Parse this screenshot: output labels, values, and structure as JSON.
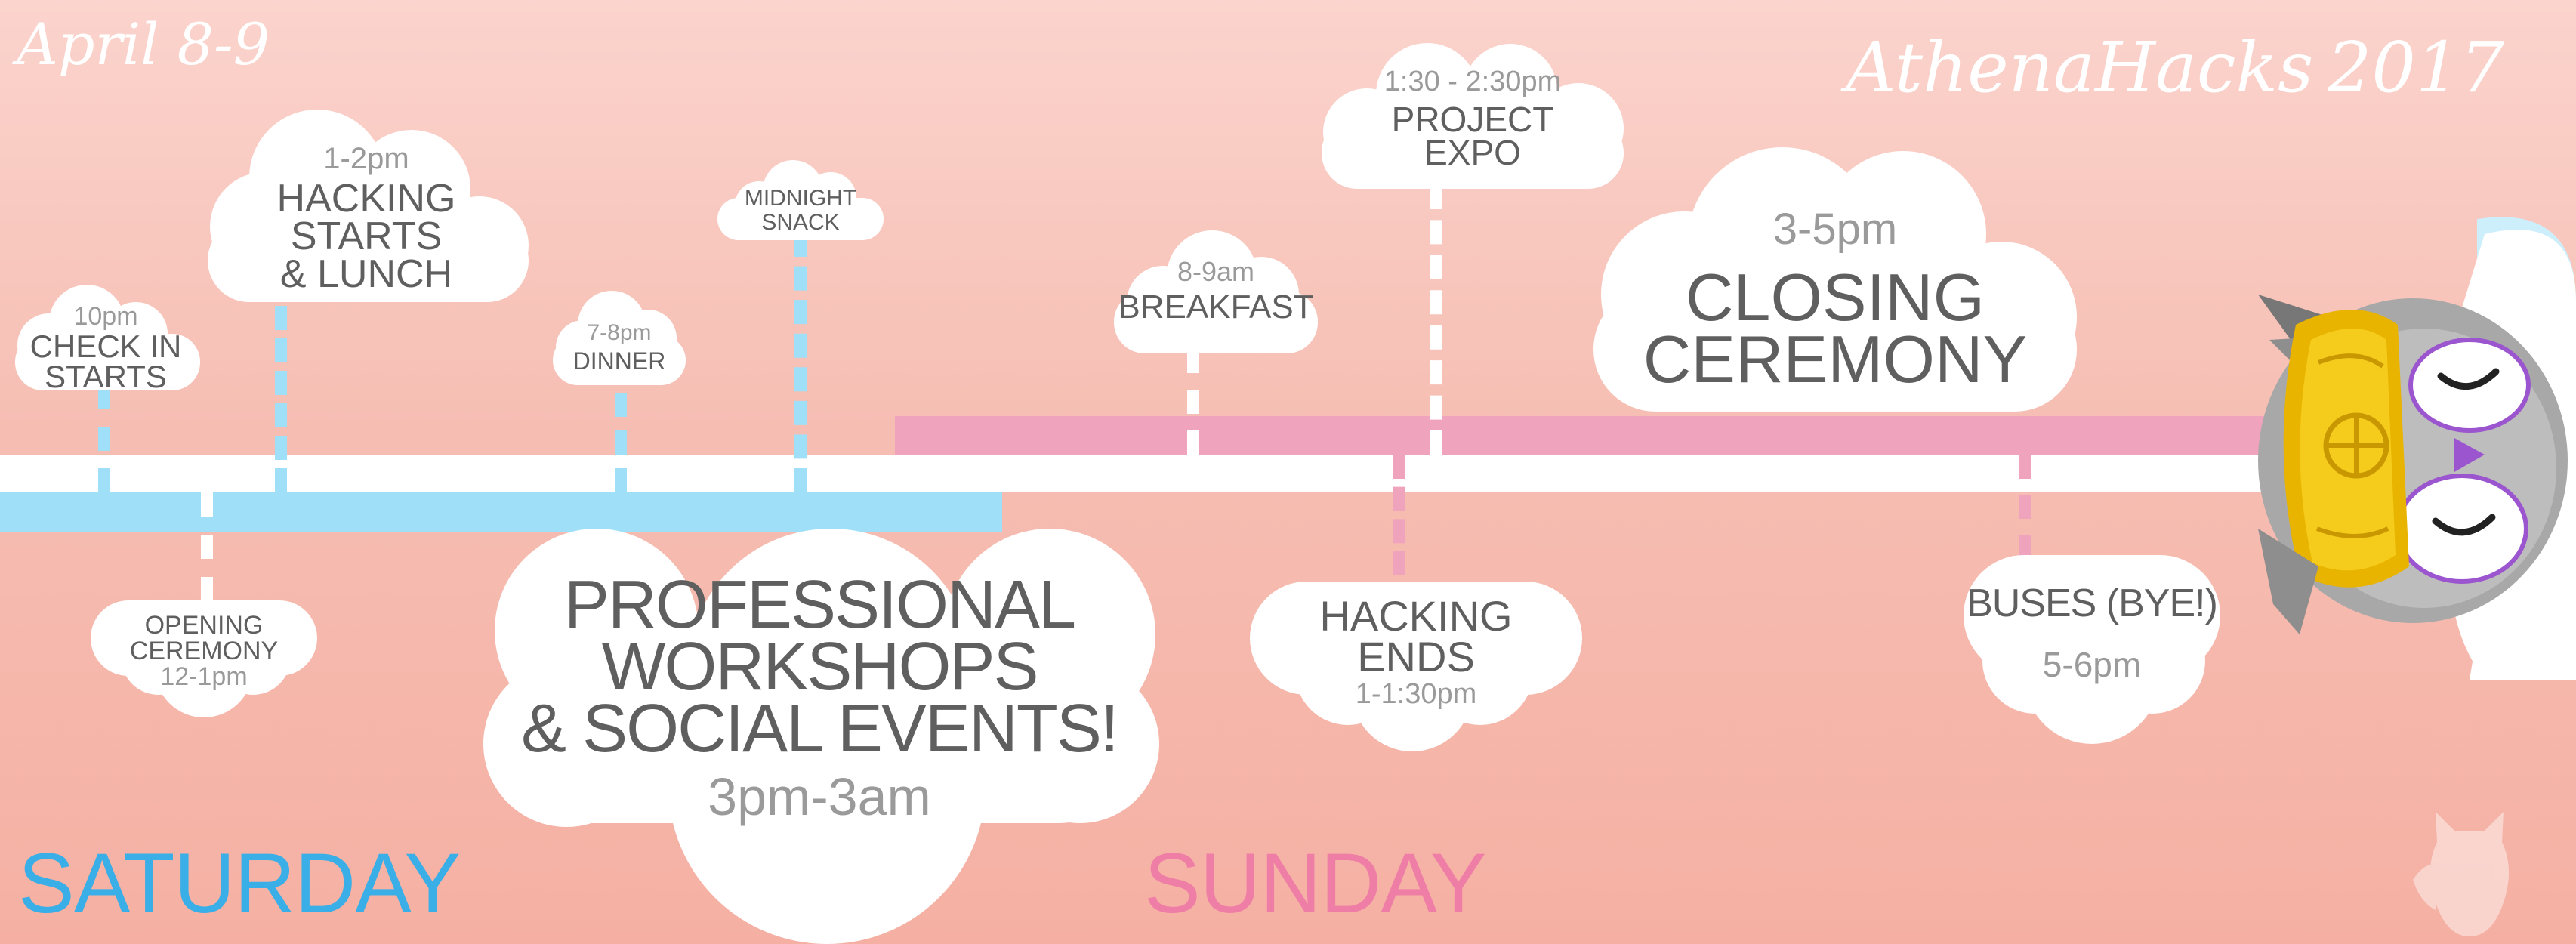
{
  "header": {
    "dates": "April 8-9",
    "brand": "AthenaHacks",
    "year": "2017"
  },
  "days": {
    "saturday": "SATURDAY",
    "sunday": "SUNDAY"
  },
  "events": {
    "check_in": {
      "time": "10pm",
      "line1": "CHECK IN",
      "line2": "STARTS"
    },
    "hacking_starts": {
      "time": "1-2pm",
      "line1": "HACKING",
      "line2": "STARTS",
      "line3": "& LUNCH"
    },
    "dinner": {
      "time": "7-8pm",
      "line1": "DINNER"
    },
    "midnight_snack": {
      "line1": "MIDNIGHT",
      "line2": "SNACK"
    },
    "opening_ceremony": {
      "line1": "OPENING",
      "line2": "CEREMONY",
      "time": "12-1pm"
    },
    "workshops": {
      "line1": "PROFESSIONAL",
      "line2": "WORKSHOPS",
      "line3": "& SOCIAL EVENTS!",
      "time": "3pm-3am"
    },
    "breakfast": {
      "time": "8-9am",
      "line1": "BREAKFAST"
    },
    "project_expo": {
      "time": "1:30 - 2:30pm",
      "line1": "PROJECT",
      "line2": "EXPO"
    },
    "closing_ceremony": {
      "time": "3-5pm",
      "line1": "CLOSING",
      "line2": "CEREMONY"
    },
    "hacking_ends": {
      "line1": "HACKING",
      "line2": "ENDS",
      "time": "1-1:30pm"
    },
    "buses": {
      "line1": "BUSES (BYE!)",
      "time": "5-6pm"
    }
  },
  "colors": {
    "saturday_blue": "#9fdff8",
    "saturday_text": "#3aaee6",
    "sunday_pink": "#f0a3bd",
    "sunday_text": "#ef7ea6",
    "cloud": "#ffffff",
    "text_dark": "#5f5f5f",
    "text_grey": "#9a9a9a"
  },
  "icons": {
    "mascot": "owl-mascot-icon",
    "watermark": "owl-silhouette-icon"
  }
}
